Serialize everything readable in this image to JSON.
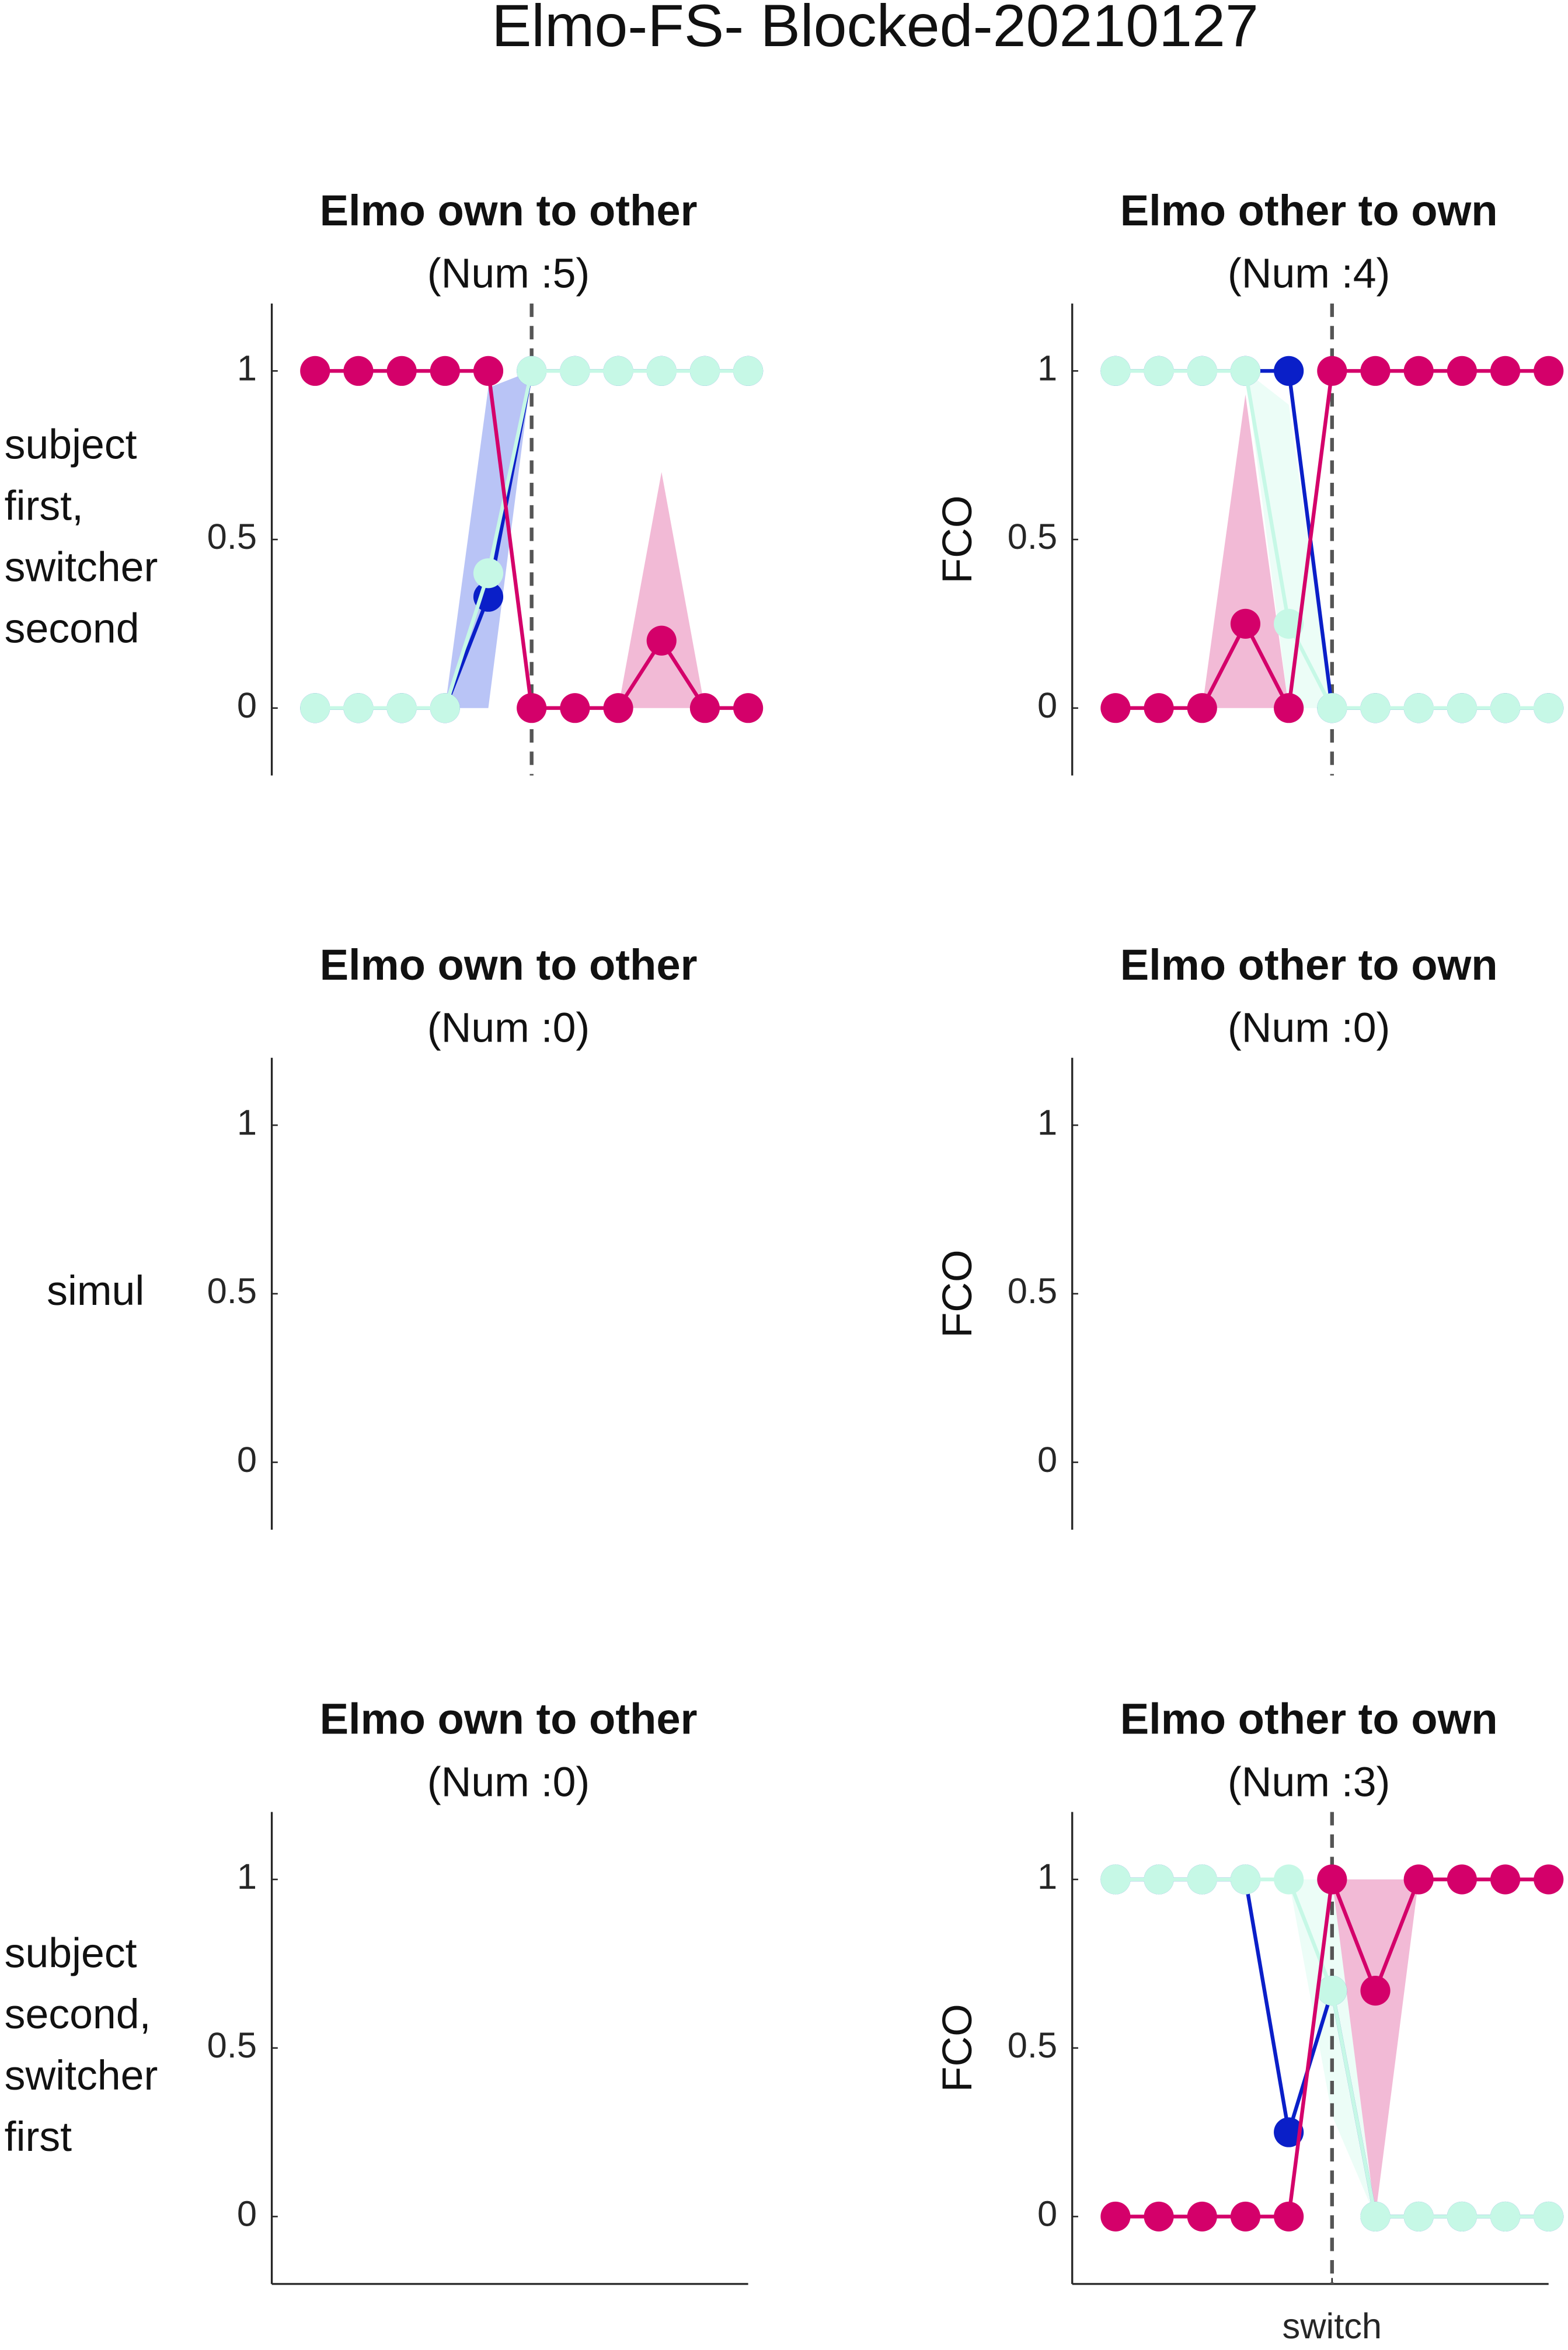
{
  "figure_title": "Elmo-FS- Blocked-20210127",
  "chart_data": [
    {
      "type": "line",
      "title": "Elmo own to other",
      "subtitle": "(Num :5)",
      "row_label": [
        "subject",
        "first,",
        "switcher",
        "second"
      ],
      "x": [
        -5,
        -4,
        -3,
        -2,
        -1,
        0,
        1,
        2,
        3,
        4,
        5
      ],
      "xlim": [
        -6,
        5
      ],
      "ylim": [
        -0.2,
        1.2
      ],
      "yticks": [
        0,
        0.5,
        1
      ],
      "vline": 0,
      "series": [
        {
          "color": "#0a1fc8",
          "band_color": "#8a9cf0",
          "values": [
            0,
            0,
            0,
            0,
            0.33,
            1,
            1,
            1,
            1,
            1,
            1
          ],
          "lower": [
            0,
            0,
            0,
            0,
            0,
            1,
            1,
            1,
            1,
            1,
            1
          ],
          "upper": [
            0,
            0,
            0,
            0,
            0.95,
            1,
            1,
            1,
            1,
            1,
            1
          ]
        },
        {
          "color": "#c6f8e6",
          "band_color": "#dffcf1",
          "values": [
            0,
            0,
            0,
            0,
            0.4,
            1,
            1,
            1,
            1,
            1,
            1
          ],
          "lower": [
            0,
            0,
            0,
            0,
            0.4,
            1,
            1,
            1,
            1,
            1,
            1
          ],
          "upper": [
            0,
            0,
            0,
            0,
            0.4,
            1,
            1,
            1,
            1,
            1,
            1
          ]
        },
        {
          "color": "#d4006a",
          "band_color": "#ea8cba",
          "values": [
            1,
            1,
            1,
            1,
            1,
            0,
            0,
            0,
            0.2,
            0,
            0
          ],
          "lower": [
            1,
            1,
            1,
            1,
            1,
            0,
            0,
            0,
            0,
            0,
            0
          ],
          "upper": [
            1,
            1,
            1,
            1,
            1,
            0,
            0,
            0,
            0.7,
            0,
            0
          ]
        }
      ]
    },
    {
      "type": "line",
      "title": "Elmo other to own",
      "subtitle": "(Num :4)",
      "ylabel": "FCO",
      "x": [
        -5,
        -4,
        -3,
        -2,
        -1,
        0,
        1,
        2,
        3,
        4,
        5
      ],
      "xlim": [
        -6,
        5
      ],
      "ylim": [
        -0.2,
        1.2
      ],
      "yticks": [
        0,
        0.5,
        1
      ],
      "vline": 0,
      "series": [
        {
          "color": "#0a1fc8",
          "band_color": "#8a9cf0",
          "values": [
            1,
            1,
            1,
            1,
            1,
            0,
            0,
            0,
            0,
            0,
            0
          ],
          "lower": [
            1,
            1,
            1,
            1,
            1,
            0,
            0,
            0,
            0,
            0,
            0
          ],
          "upper": [
            1,
            1,
            1,
            1,
            1,
            0,
            0,
            0,
            0,
            0,
            0
          ]
        },
        {
          "color": "#c6f8e6",
          "band_color": "#dffcf1",
          "values": [
            1,
            1,
            1,
            1,
            0.25,
            0,
            0,
            0,
            0,
            0,
            0
          ],
          "lower": [
            1,
            1,
            1,
            1,
            0,
            0,
            0,
            0,
            0,
            0,
            0
          ],
          "upper": [
            1,
            1,
            1,
            1,
            0.9,
            0,
            0,
            0,
            0,
            0,
            0
          ]
        },
        {
          "color": "#d4006a",
          "band_color": "#ea8cba",
          "values": [
            0,
            0,
            0,
            0.25,
            0,
            1,
            1,
            1,
            1,
            1,
            1
          ],
          "lower": [
            0,
            0,
            0,
            0,
            0,
            1,
            1,
            1,
            1,
            1,
            1
          ],
          "upper": [
            0,
            0,
            0,
            0.93,
            0,
            1,
            1,
            1,
            1,
            1,
            1
          ]
        }
      ]
    },
    {
      "type": "line",
      "title": "Elmo own to other",
      "subtitle": "(Num :0)",
      "row_label": [
        "simul"
      ],
      "xlim": [
        -6,
        5
      ],
      "ylim": [
        -0.2,
        1.2
      ],
      "yticks": [
        0,
        0.5,
        1
      ],
      "series": []
    },
    {
      "type": "line",
      "title": "Elmo other to own",
      "subtitle": "(Num :0)",
      "ylabel": "FCO",
      "xlim": [
        -6,
        5
      ],
      "ylim": [
        -0.2,
        1.2
      ],
      "yticks": [
        0,
        0.5,
        1
      ],
      "series": []
    },
    {
      "type": "line",
      "title": "Elmo own to other",
      "subtitle": "(Num :0)",
      "row_label": [
        "subject",
        "second,",
        "switcher",
        "first"
      ],
      "xlim": [
        -6,
        5
      ],
      "ylim": [
        -0.2,
        1.2
      ],
      "yticks": [
        0,
        0.5,
        1
      ],
      "x_axis": true,
      "series": []
    },
    {
      "type": "line",
      "title": "Elmo other to own",
      "subtitle": "(Num :3)",
      "ylabel": "FCO",
      "x": [
        -5,
        -4,
        -3,
        -2,
        -1,
        0,
        1,
        2,
        3,
        4,
        5
      ],
      "xlim": [
        -6,
        5
      ],
      "ylim": [
        -0.2,
        1.2
      ],
      "yticks": [
        0,
        0.5,
        1
      ],
      "xticks": [
        {
          "value": 0,
          "label": "switch"
        }
      ],
      "x_axis": true,
      "vline": 0,
      "series": [
        {
          "color": "#0a1fc8",
          "band_color": "#8a9cf0",
          "values": [
            1,
            1,
            1,
            1,
            0.25,
            0.67,
            0,
            0,
            0,
            0,
            0
          ],
          "lower": [
            1,
            1,
            1,
            1,
            0.25,
            0.67,
            0,
            0,
            0,
            0,
            0
          ],
          "upper": [
            1,
            1,
            1,
            1,
            0.25,
            0.67,
            0,
            0,
            0,
            0,
            0
          ]
        },
        {
          "color": "#c6f8e6",
          "band_color": "#dffcf1",
          "values": [
            1,
            1,
            1,
            1,
            1,
            0.67,
            0,
            0,
            0,
            0,
            0
          ],
          "lower": [
            1,
            1,
            1,
            1,
            1,
            0.3,
            0,
            0,
            0,
            0,
            0
          ],
          "upper": [
            1,
            1,
            1,
            1,
            1,
            1,
            0,
            0,
            0,
            0,
            0
          ]
        },
        {
          "color": "#d4006a",
          "band_color": "#ea8cba",
          "values": [
            0,
            0,
            0,
            0,
            0,
            1,
            0.67,
            1,
            1,
            1,
            1
          ],
          "lower": [
            0,
            0,
            0,
            0,
            0,
            1,
            0,
            1,
            1,
            1,
            1
          ],
          "upper": [
            0,
            0,
            0,
            0,
            0,
            1,
            1,
            1,
            1,
            1,
            1
          ]
        }
      ]
    }
  ]
}
